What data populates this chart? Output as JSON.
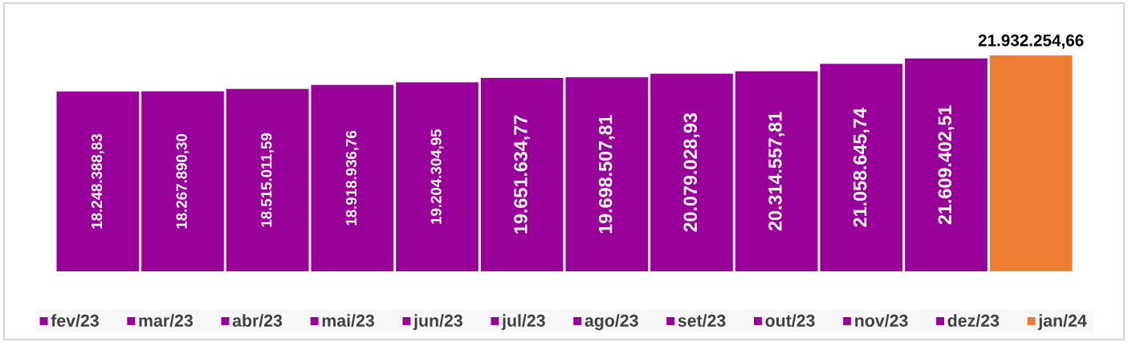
{
  "chart_data": {
    "type": "bar",
    "stacked": true,
    "legend": "bottom",
    "categories": [
      null,
      null,
      null,
      null,
      null,
      null,
      null,
      null,
      null,
      null,
      null,
      null
    ],
    "series": [
      {
        "name": "fev/23",
        "color": "#990099",
        "values": [
          18248388.83,
          null,
          null,
          null,
          null,
          null,
          null,
          null,
          null,
          null,
          null,
          null
        ],
        "value_labels": [
          "18.248.388,83",
          null,
          null,
          null,
          null,
          null,
          null,
          null,
          null,
          null,
          null,
          null
        ]
      },
      {
        "name": "mar/23",
        "color": "#990099",
        "values": [
          null,
          18267890.3,
          null,
          null,
          null,
          null,
          null,
          null,
          null,
          null,
          null,
          null
        ],
        "value_labels": [
          null,
          "18.267.890,30",
          null,
          null,
          null,
          null,
          null,
          null,
          null,
          null,
          null,
          null
        ]
      },
      {
        "name": "abr/23",
        "color": "#990099",
        "values": [
          null,
          null,
          18515011.59,
          null,
          null,
          null,
          null,
          null,
          null,
          null,
          null,
          null
        ],
        "value_labels": [
          null,
          null,
          "18.515.011,59",
          null,
          null,
          null,
          null,
          null,
          null,
          null,
          null,
          null
        ]
      },
      {
        "name": "mai/23",
        "color": "#990099",
        "values": [
          null,
          null,
          null,
          18918936.76,
          null,
          null,
          null,
          null,
          null,
          null,
          null,
          null
        ],
        "value_labels": [
          null,
          null,
          null,
          "18.918.936,76",
          null,
          null,
          null,
          null,
          null,
          null,
          null,
          null
        ]
      },
      {
        "name": "jun/23",
        "color": "#990099",
        "values": [
          null,
          null,
          null,
          null,
          19204304.95,
          null,
          null,
          null,
          null,
          null,
          null,
          null
        ],
        "value_labels": [
          null,
          null,
          null,
          null,
          "19.204.304,95",
          null,
          null,
          null,
          null,
          null,
          null,
          null
        ]
      },
      {
        "name": "jul/23",
        "color": "#990099",
        "values": [
          null,
          null,
          null,
          null,
          null,
          19651634.77,
          null,
          null,
          null,
          null,
          null,
          null
        ],
        "value_labels": [
          null,
          null,
          null,
          null,
          null,
          "19.651.634,77",
          null,
          null,
          null,
          null,
          null,
          null
        ]
      },
      {
        "name": "ago/23",
        "color": "#990099",
        "values": [
          null,
          null,
          null,
          null,
          null,
          null,
          19698507.81,
          null,
          null,
          null,
          null,
          null
        ],
        "value_labels": [
          null,
          null,
          null,
          null,
          null,
          null,
          "19.698.507,81",
          null,
          null,
          null,
          null,
          null
        ]
      },
      {
        "name": "set/23",
        "color": "#990099",
        "values": [
          null,
          null,
          null,
          null,
          null,
          null,
          null,
          20079028.93,
          null,
          null,
          null,
          null
        ],
        "value_labels": [
          null,
          null,
          null,
          null,
          null,
          null,
          null,
          "20.079.028,93",
          null,
          null,
          null,
          null
        ]
      },
      {
        "name": "out/23",
        "color": "#990099",
        "values": [
          null,
          null,
          null,
          null,
          null,
          null,
          null,
          null,
          20314557.81,
          null,
          null,
          null
        ],
        "value_labels": [
          null,
          null,
          null,
          null,
          null,
          null,
          null,
          null,
          "20.314.557,81",
          null,
          null,
          null
        ]
      },
      {
        "name": "nov/23",
        "color": "#990099",
        "values": [
          null,
          null,
          null,
          null,
          null,
          null,
          null,
          null,
          null,
          21058645.74,
          null,
          null
        ],
        "value_labels": [
          null,
          null,
          null,
          null,
          null,
          null,
          null,
          null,
          null,
          "21.058.645,74",
          null,
          null
        ]
      },
      {
        "name": "dez/23",
        "color": "#990099",
        "values": [
          null,
          null,
          null,
          null,
          null,
          null,
          null,
          null,
          null,
          null,
          21609402.51,
          null
        ],
        "value_labels": [
          null,
          null,
          null,
          null,
          null,
          null,
          null,
          null,
          null,
          null,
          "21.609.402,51",
          null
        ]
      },
      {
        "name": "jan/24",
        "color": "#ed7d31",
        "values": [
          null,
          null,
          null,
          null,
          null,
          null,
          null,
          null,
          null,
          null,
          null,
          21932254.66
        ],
        "value_labels": [
          null,
          null,
          null,
          null,
          null,
          null,
          null,
          null,
          null,
          null,
          null,
          "21.932.254,66"
        ]
      }
    ]
  }
}
